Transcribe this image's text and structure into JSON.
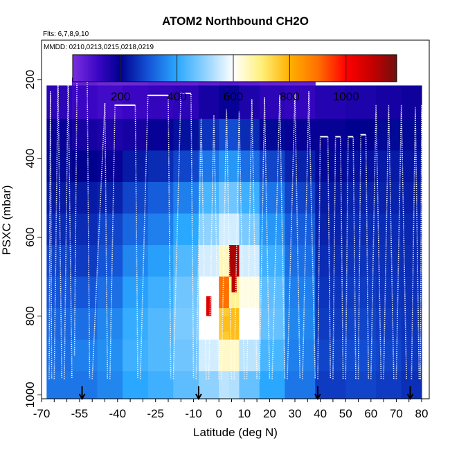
{
  "chart_data": {
    "type": "heatmap",
    "title": "ATOM2 Northbound CH2O",
    "subtitle_flights": "Flts: 6,7,8,9,10",
    "subtitle_dates": "MMDD: 0210,0213,0215,0218,0219",
    "xlabel": "Latitude (deg N)",
    "ylabel": "PSXC (mbar)",
    "xlim": [
      -70,
      83
    ],
    "ylim": [
      1010,
      100
    ],
    "x_ticks": [
      "-70",
      "-55",
      "-40",
      "-25",
      "-10",
      "0",
      "10",
      "20",
      "30",
      "40",
      "50",
      "60",
      "70",
      "80"
    ],
    "y_ticks": [
      "200",
      "400",
      "600",
      "800",
      "1000"
    ],
    "colorbar": {
      "range": [
        30,
        1180
      ],
      "ticks": [
        "200",
        "400",
        "600",
        "800",
        "1000"
      ],
      "stops": [
        {
          "value": 30,
          "color": "#7b2fe0"
        },
        {
          "value": 120,
          "color": "#3a06c4"
        },
        {
          "value": 200,
          "color": "#00008f"
        },
        {
          "value": 300,
          "color": "#1455d8"
        },
        {
          "value": 400,
          "color": "#2aa8ff"
        },
        {
          "value": 500,
          "color": "#8fd2ff"
        },
        {
          "value": 600,
          "color": "#ffffff"
        },
        {
          "value": 700,
          "color": "#fff07a"
        },
        {
          "value": 800,
          "color": "#ffb000"
        },
        {
          "value": 900,
          "color": "#ff7000"
        },
        {
          "value": 1000,
          "color": "#ff0000"
        },
        {
          "value": 1100,
          "color": "#c00000"
        },
        {
          "value": 1180,
          "color": "#701010"
        }
      ]
    },
    "curtain_columns": [
      {
        "lat0": -68,
        "lat1": -58,
        "p_top": 215,
        "values": [
          80,
          140,
          190,
          210,
          230,
          250,
          280,
          300,
          320,
          330,
          340
        ]
      },
      {
        "lat0": -58,
        "lat1": -48,
        "p_top": 195,
        "values": [
          60,
          120,
          170,
          200,
          230,
          250,
          270,
          300,
          330,
          350,
          340
        ]
      },
      {
        "lat0": -48,
        "lat1": -38,
        "p_top": 195,
        "values": [
          50,
          110,
          160,
          190,
          240,
          280,
          300,
          330,
          360,
          370,
          360
        ]
      },
      {
        "lat0": -38,
        "lat1": -28,
        "p_top": 195,
        "values": [
          50,
          120,
          170,
          230,
          280,
          320,
          360,
          390,
          410,
          420,
          400
        ]
      },
      {
        "lat0": -28,
        "lat1": -18,
        "p_top": 195,
        "values": [
          60,
          130,
          190,
          250,
          310,
          350,
          390,
          420,
          440,
          440,
          420
        ]
      },
      {
        "lat0": -18,
        "lat1": -8,
        "p_top": 195,
        "values": [
          60,
          140,
          220,
          280,
          350,
          400,
          440,
          470,
          480,
          470,
          450
        ]
      },
      {
        "lat0": -8,
        "lat1": 0,
        "p_top": 195,
        "values": [
          70,
          170,
          260,
          340,
          430,
          500,
          560,
          600,
          600,
          560,
          500
        ]
      },
      {
        "lat0": 0,
        "lat1": 4,
        "p_top": 195,
        "values": [
          80,
          190,
          290,
          380,
          480,
          560,
          650,
          900,
          760,
          640,
          540
        ]
      },
      {
        "lat0": 4,
        "lat1": 8,
        "p_top": 195,
        "values": [
          80,
          190,
          290,
          380,
          470,
          560,
          1120,
          680,
          780,
          640,
          530
        ]
      },
      {
        "lat0": 8,
        "lat1": 16,
        "p_top": 195,
        "values": [
          70,
          160,
          250,
          330,
          420,
          480,
          560,
          620,
          600,
          540,
          460
        ]
      },
      {
        "lat0": 16,
        "lat1": 26,
        "p_top": 195,
        "values": [
          60,
          140,
          210,
          280,
          340,
          380,
          420,
          450,
          460,
          430,
          400
        ]
      },
      {
        "lat0": 26,
        "lat1": 38,
        "p_top": 195,
        "values": [
          60,
          130,
          190,
          240,
          280,
          310,
          330,
          350,
          360,
          350,
          340
        ]
      },
      {
        "lat0": 38,
        "lat1": 50,
        "p_top": 215,
        "values": [
          100,
          150,
          190,
          210,
          230,
          240,
          250,
          260,
          270,
          280,
          270
        ]
      },
      {
        "lat0": 50,
        "lat1": 62,
        "p_top": 215,
        "values": [
          110,
          160,
          200,
          220,
          240,
          250,
          260,
          270,
          280,
          290,
          280
        ]
      },
      {
        "lat0": 62,
        "lat1": 72,
        "p_top": 225,
        "values": [
          130,
          170,
          210,
          230,
          240,
          250,
          255,
          260,
          270,
          280,
          270
        ]
      },
      {
        "lat0": 72,
        "lat1": 80,
        "p_top": 240,
        "values": [
          150,
          180,
          210,
          225,
          235,
          245,
          250,
          255,
          260,
          265,
          255
        ]
      }
    ],
    "pressure_bins": [
      215,
      300,
      380,
      460,
      540,
      620,
      700,
      780,
      860,
      940,
      1010
    ],
    "hot_spots": [
      {
        "lat0": -5,
        "lat1": -3,
        "p0": 750,
        "p1": 800,
        "value": 1050
      },
      {
        "lat0": 5,
        "lat1": 7,
        "p0": 690,
        "p1": 740,
        "value": 1100
      },
      {
        "lat0": 1,
        "lat1": 4,
        "p0": 800,
        "p1": 840,
        "value": 780
      }
    ],
    "flight_profiles": [
      {
        "lat": [
          -67,
          -66.5,
          -66
        ],
        "p": [
          960,
          230,
          960
        ]
      },
      {
        "lat": [
          -65,
          -63.5,
          -62
        ],
        "p": [
          960,
          200,
          960
        ]
      },
      {
        "lat": [
          -61,
          -59.5,
          -58
        ],
        "p": [
          960,
          195,
          960
        ]
      },
      {
        "lat": [
          -57,
          -56,
          -52,
          -51
        ],
        "p": [
          900,
          190,
          190,
          960
        ]
      },
      {
        "lat": [
          -50,
          -45,
          -44
        ],
        "p": [
          960,
          260,
          960
        ]
      },
      {
        "lat": [
          -43,
          -41,
          -33,
          -32
        ],
        "p": [
          960,
          265,
          265,
          960
        ]
      },
      {
        "lat": [
          -31,
          -28,
          -20,
          -19
        ],
        "p": [
          960,
          240,
          240,
          960
        ]
      },
      {
        "lat": [
          -18,
          -15,
          -11,
          -10
        ],
        "p": [
          960,
          235,
          235,
          960
        ]
      },
      {
        "lat": [
          -9,
          -7,
          -5
        ],
        "p": [
          960,
          300,
          960
        ]
      },
      {
        "lat": [
          -4,
          -2,
          0
        ],
        "p": [
          960,
          290,
          960
        ]
      },
      {
        "lat": [
          1,
          3,
          5
        ],
        "p": [
          960,
          275,
          960
        ]
      },
      {
        "lat": [
          6,
          8,
          10
        ],
        "p": [
          960,
          280,
          960
        ]
      },
      {
        "lat": [
          11,
          13,
          15
        ],
        "p": [
          960,
          250,
          960
        ]
      },
      {
        "lat": [
          16,
          18,
          20
        ],
        "p": [
          960,
          245,
          960
        ]
      },
      {
        "lat": [
          21,
          24,
          26
        ],
        "p": [
          960,
          240,
          960
        ]
      },
      {
        "lat": [
          27,
          30,
          32
        ],
        "p": [
          960,
          235,
          960
        ]
      },
      {
        "lat": [
          33,
          35.5,
          38
        ],
        "p": [
          960,
          230,
          960
        ]
      },
      {
        "lat": [
          39,
          40,
          43,
          44
        ],
        "p": [
          960,
          345,
          345,
          960
        ]
      },
      {
        "lat": [
          45,
          46,
          48,
          49
        ],
        "p": [
          960,
          345,
          345,
          960
        ]
      },
      {
        "lat": [
          50,
          51,
          53,
          54
        ],
        "p": [
          960,
          345,
          345,
          960
        ]
      },
      {
        "lat": [
          55,
          56,
          58,
          59
        ],
        "p": [
          960,
          340,
          340,
          960
        ]
      },
      {
        "lat": [
          60,
          62,
          64
        ],
        "p": [
          960,
          265,
          960
        ]
      },
      {
        "lat": [
          65,
          67,
          69
        ],
        "p": [
          960,
          265,
          960
        ]
      },
      {
        "lat": [
          70,
          72,
          74
        ],
        "p": [
          960,
          265,
          960
        ]
      },
      {
        "lat": [
          76,
          77.5,
          79
        ],
        "p": [
          960,
          270,
          960
        ]
      },
      {
        "lat": [
          79.5,
          80,
          80.5
        ],
        "p": [
          960,
          265,
          960
        ]
      }
    ],
    "arrow_latitudes": [
      -54,
      -8,
      39,
      75.5
    ]
  }
}
